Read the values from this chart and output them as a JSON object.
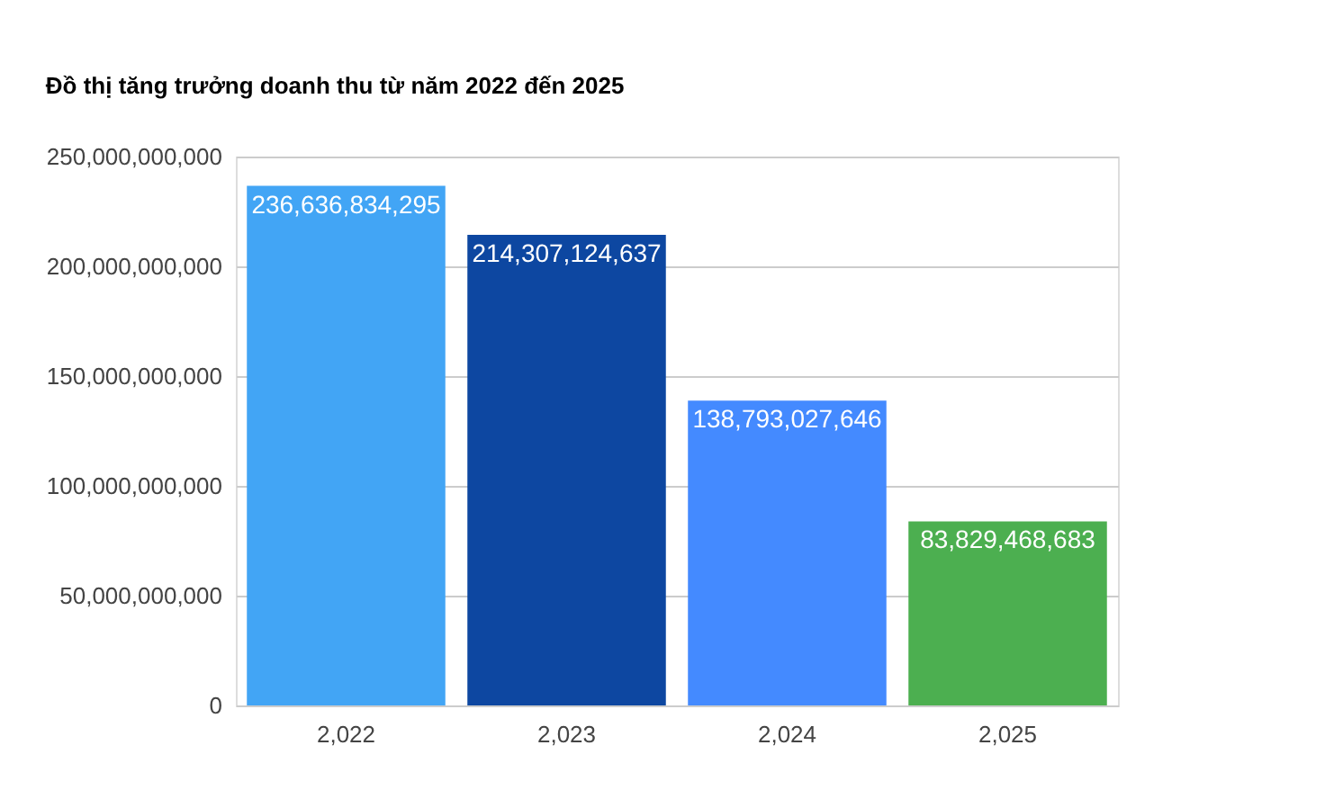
{
  "chart_data": {
    "type": "bar",
    "title": "Đồ thị tăng trưởng doanh thu từ năm 2022 đến 2025",
    "categories": [
      "2,022",
      "2,023",
      "2,024",
      "2,025"
    ],
    "values": [
      236636834295,
      214307124637,
      138793027646,
      83829468683
    ],
    "value_labels": [
      "236,636,834,295",
      "214,307,124,637",
      "138,793,027,646",
      "83,829,468,683"
    ],
    "colors": [
      "#42a5f5",
      "#0d47a1",
      "#448aff",
      "#4caf50"
    ],
    "ylim": [
      0,
      250000000000
    ],
    "yticks": [
      0,
      {
        "value": 50000000000,
        "label": "50,000,000,000"
      },
      {
        "value": 100000000000,
        "label": "100,000,000,000"
      },
      {
        "value": 150000000000,
        "label": "150,000,000,000"
      },
      {
        "value": 200000000000,
        "label": "200,000,000,000"
      },
      {
        "value": 250000000000,
        "label": "250,000,000,000"
      }
    ],
    "grid": "y"
  }
}
